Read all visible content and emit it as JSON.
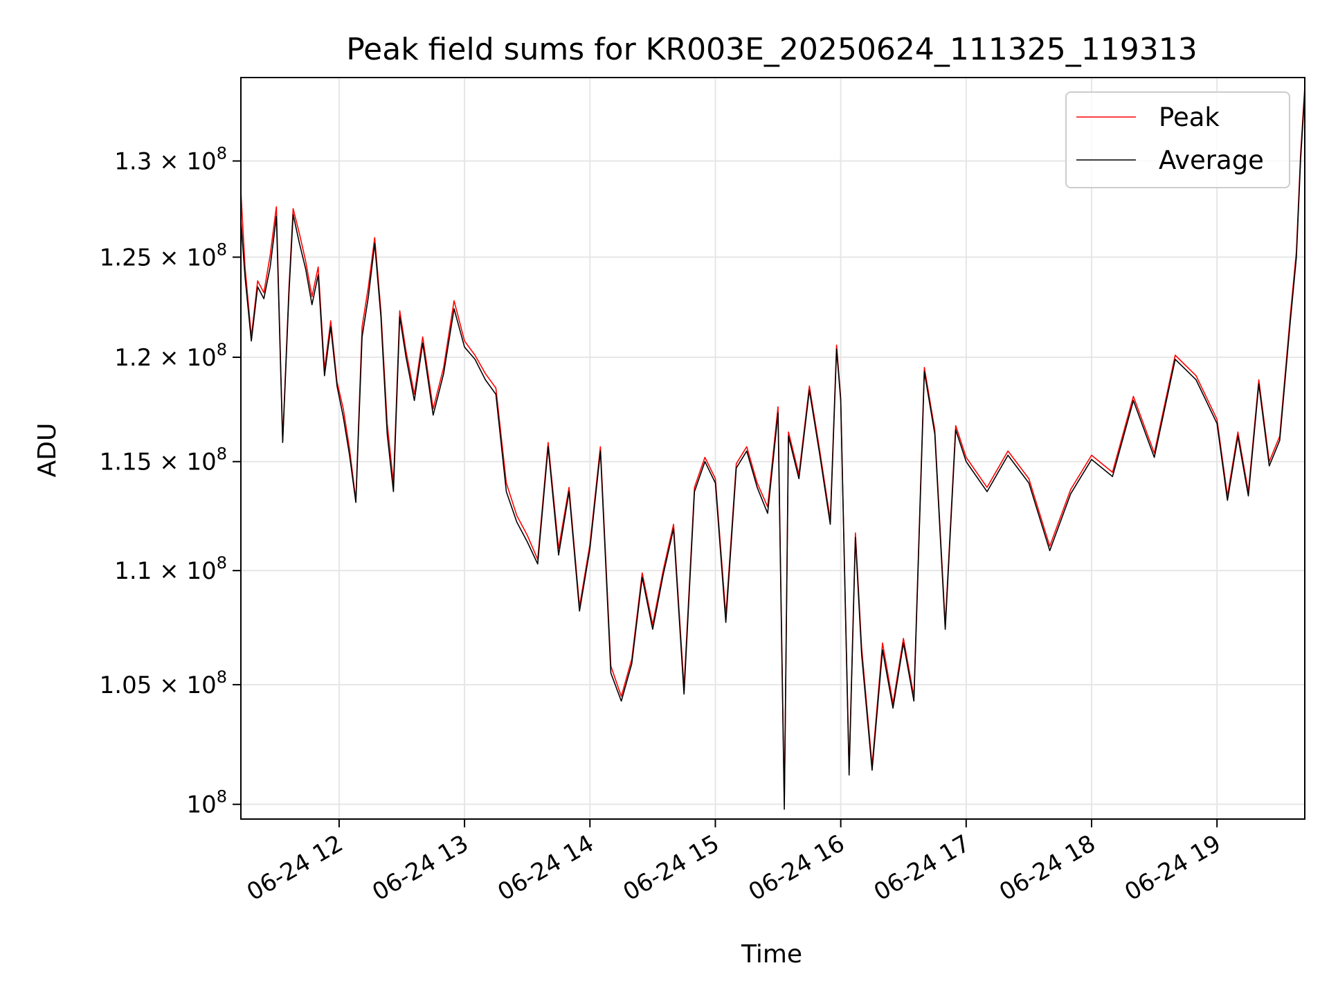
{
  "chart_data": {
    "type": "line",
    "title": "Peak field sums for KR003E_20250624_111325_119313",
    "xlabel": "Time",
    "ylabel": "ADU",
    "y_scale": "log",
    "grid": true,
    "legend_position": "top-right",
    "x_ticks": [
      "06-24 12",
      "06-24 13",
      "06-24 14",
      "06-24 15",
      "06-24 16",
      "06-24 17",
      "06-24 18",
      "06-24 19"
    ],
    "y_ticks": [
      {
        "value": 100000000,
        "mantissa": "",
        "exponent": "8"
      },
      {
        "value": 105000000,
        "mantissa": "1.05 × ",
        "exponent": "8"
      },
      {
        "value": 110000000,
        "mantissa": "1.1 × ",
        "exponent": "8"
      },
      {
        "value": 115000000,
        "mantissa": "1.15 × ",
        "exponent": "8"
      },
      {
        "value": 120000000,
        "mantissa": "1.2 × ",
        "exponent": "8"
      },
      {
        "value": 125000000,
        "mantissa": "1.25 × ",
        "exponent": "8"
      },
      {
        "value": 130000000,
        "mantissa": "1.3 × ",
        "exponent": "8"
      }
    ],
    "xlim": [
      "06-24 11:13",
      "06-24 19:42"
    ],
    "ylim": [
      99400000,
      134500000
    ],
    "series": [
      {
        "name": "Peak",
        "color": "#ff0000",
        "x": [
          "06-24 11:13",
          "06-24 11:15",
          "06-24 11:18",
          "06-24 11:21",
          "06-24 11:24",
          "06-24 11:27",
          "06-24 11:30",
          "06-24 11:33",
          "06-24 11:36",
          "06-24 11:38",
          "06-24 11:41",
          "06-24 11:44",
          "06-24 11:47",
          "06-24 11:50",
          "06-24 11:53",
          "06-24 11:56",
          "06-24 11:59",
          "06-24 12:02",
          "06-24 12:05",
          "06-24 12:08",
          "06-24 12:11",
          "06-24 12:14",
          "06-24 12:17",
          "06-24 12:20",
          "06-24 12:23",
          "06-24 12:26",
          "06-24 12:29",
          "06-24 12:32",
          "06-24 12:36",
          "06-24 12:40",
          "06-24 12:45",
          "06-24 12:50",
          "06-24 12:55",
          "06-24 13:00",
          "06-24 13:05",
          "06-24 13:10",
          "06-24 13:15",
          "06-24 13:20",
          "06-24 13:25",
          "06-24 13:30",
          "06-24 13:35",
          "06-24 13:40",
          "06-24 13:45",
          "06-24 13:50",
          "06-24 13:55",
          "06-24 14:00",
          "06-24 14:05",
          "06-24 14:10",
          "06-24 14:15",
          "06-24 14:20",
          "06-24 14:25",
          "06-24 14:30",
          "06-24 14:35",
          "06-24 14:40",
          "06-24 14:45",
          "06-24 14:50",
          "06-24 14:55",
          "06-24 15:00",
          "06-24 15:05",
          "06-24 15:10",
          "06-24 15:15",
          "06-24 15:20",
          "06-24 15:25",
          "06-24 15:30",
          "06-24 15:33",
          "06-24 15:35",
          "06-24 15:40",
          "06-24 15:45",
          "06-24 15:50",
          "06-24 15:55",
          "06-24 15:58",
          "06-24 16:00",
          "06-24 16:04",
          "06-24 16:07",
          "06-24 16:10",
          "06-24 16:15",
          "06-24 16:20",
          "06-24 16:25",
          "06-24 16:30",
          "06-24 16:35",
          "06-24 16:40",
          "06-24 16:45",
          "06-24 16:50",
          "06-24 16:55",
          "06-24 17:00",
          "06-24 17:10",
          "06-24 17:20",
          "06-24 17:30",
          "06-24 17:40",
          "06-24 17:50",
          "06-24 18:00",
          "06-24 18:10",
          "06-24 18:20",
          "06-24 18:30",
          "06-24 18:40",
          "06-24 18:50",
          "06-24 19:00",
          "06-24 19:05",
          "06-24 19:10",
          "06-24 19:15",
          "06-24 19:20",
          "06-24 19:25",
          "06-24 19:30",
          "06-24 19:35",
          "06-24 19:38",
          "06-24 19:40",
          "06-24 19:42"
        ],
        "values": [
          128400000,
          124500000,
          121000000,
          123800000,
          123200000,
          125100000,
          127600000,
          116000000,
          123500000,
          127500000,
          126200000,
          124800000,
          123000000,
          124500000,
          119400000,
          121800000,
          118800000,
          117500000,
          115600000,
          113200000,
          121500000,
          123500000,
          126000000,
          122300000,
          116800000,
          114000000,
          122300000,
          120300000,
          118200000,
          121000000,
          117500000,
          119500000,
          122800000,
          120800000,
          120100000,
          119200000,
          118500000,
          114000000,
          112500000,
          111600000,
          110500000,
          115900000,
          111000000,
          113800000,
          108400000,
          111200000,
          115700000,
          105800000,
          104500000,
          106100000,
          109900000,
          107600000,
          110000000,
          112100000,
          104900000,
          113800000,
          115200000,
          114200000,
          108000000,
          114900000,
          115700000,
          114000000,
          112900000,
          117600000,
          100000000,
          116400000,
          114400000,
          118600000,
          115500000,
          112300000,
          120600000,
          118000000,
          101400000,
          111700000,
          106600000,
          101600000,
          106800000,
          104200000,
          107000000,
          104500000,
          119500000,
          116500000,
          107600000,
          116700000,
          115200000,
          113800000,
          115500000,
          114200000,
          111100000,
          113700000,
          115300000,
          114500000,
          118100000,
          115400000,
          120100000,
          119100000,
          117000000,
          113400000,
          116400000,
          113600000,
          118900000,
          115000000,
          116200000,
          122000000,
          125300000,
          130400000,
          134000000
        ]
      },
      {
        "name": "Average",
        "color": "#000000",
        "x": [
          "06-24 11:13",
          "06-24 11:15",
          "06-24 11:18",
          "06-24 11:21",
          "06-24 11:24",
          "06-24 11:27",
          "06-24 11:30",
          "06-24 11:33",
          "06-24 11:36",
          "06-24 11:38",
          "06-24 11:41",
          "06-24 11:44",
          "06-24 11:47",
          "06-24 11:50",
          "06-24 11:53",
          "06-24 11:56",
          "06-24 11:59",
          "06-24 12:02",
          "06-24 12:05",
          "06-24 12:08",
          "06-24 12:11",
          "06-24 12:14",
          "06-24 12:17",
          "06-24 12:20",
          "06-24 12:23",
          "06-24 12:26",
          "06-24 12:29",
          "06-24 12:32",
          "06-24 12:36",
          "06-24 12:40",
          "06-24 12:45",
          "06-24 12:50",
          "06-24 12:55",
          "06-24 13:00",
          "06-24 13:05",
          "06-24 13:10",
          "06-24 13:15",
          "06-24 13:20",
          "06-24 13:25",
          "06-24 13:30",
          "06-24 13:35",
          "06-24 13:40",
          "06-24 13:45",
          "06-24 13:50",
          "06-24 13:55",
          "06-24 14:00",
          "06-24 14:05",
          "06-24 14:10",
          "06-24 14:15",
          "06-24 14:20",
          "06-24 14:25",
          "06-24 14:30",
          "06-24 14:35",
          "06-24 14:40",
          "06-24 14:45",
          "06-24 14:50",
          "06-24 14:55",
          "06-24 15:00",
          "06-24 15:05",
          "06-24 15:10",
          "06-24 15:15",
          "06-24 15:20",
          "06-24 15:25",
          "06-24 15:30",
          "06-24 15:33",
          "06-24 15:35",
          "06-24 15:40",
          "06-24 15:45",
          "06-24 15:50",
          "06-24 15:55",
          "06-24 15:58",
          "06-24 16:00",
          "06-24 16:04",
          "06-24 16:07",
          "06-24 16:10",
          "06-24 16:15",
          "06-24 16:20",
          "06-24 16:25",
          "06-24 16:30",
          "06-24 16:35",
          "06-24 16:40",
          "06-24 16:45",
          "06-24 16:50",
          "06-24 16:55",
          "06-24 17:00",
          "06-24 17:10",
          "06-24 17:20",
          "06-24 17:30",
          "06-24 17:40",
          "06-24 17:50",
          "06-24 18:00",
          "06-24 18:10",
          "06-24 18:20",
          "06-24 18:30",
          "06-24 18:40",
          "06-24 18:50",
          "06-24 19:00",
          "06-24 19:05",
          "06-24 19:10",
          "06-24 19:15",
          "06-24 19:20",
          "06-24 19:25",
          "06-24 19:30",
          "06-24 19:35",
          "06-24 19:38",
          "06-24 19:40",
          "06-24 19:42"
        ],
        "values": [
          126900000,
          124000000,
          120800000,
          123500000,
          122900000,
          124500000,
          127100000,
          115900000,
          123200000,
          127200000,
          125700000,
          124400000,
          122600000,
          124100000,
          119100000,
          121500000,
          118600000,
          117100000,
          115300000,
          113100000,
          121000000,
          123000000,
          125700000,
          122000000,
          116300000,
          113600000,
          122000000,
          120000000,
          117900000,
          120700000,
          117200000,
          119200000,
          122400000,
          120500000,
          119900000,
          118900000,
          118200000,
          113600000,
          112200000,
          111300000,
          110300000,
          115700000,
          110700000,
          113600000,
          108200000,
          111000000,
          115500000,
          105500000,
          104300000,
          105900000,
          109700000,
          107400000,
          109800000,
          111900000,
          104600000,
          113600000,
          115000000,
          114000000,
          107700000,
          114700000,
          115500000,
          113800000,
          112600000,
          117300000,
          99800000,
          116200000,
          114200000,
          118400000,
          115300000,
          112100000,
          120400000,
          117900000,
          101200000,
          111500000,
          106300000,
          101400000,
          106500000,
          104000000,
          106800000,
          104300000,
          119300000,
          116300000,
          107400000,
          116500000,
          115000000,
          113600000,
          115300000,
          114000000,
          110900000,
          113500000,
          115100000,
          114300000,
          117900000,
          115200000,
          119900000,
          118900000,
          116800000,
          113200000,
          116200000,
          113400000,
          118700000,
          114800000,
          116000000,
          121700000,
          125000000,
          130100000,
          133700000
        ]
      }
    ]
  }
}
